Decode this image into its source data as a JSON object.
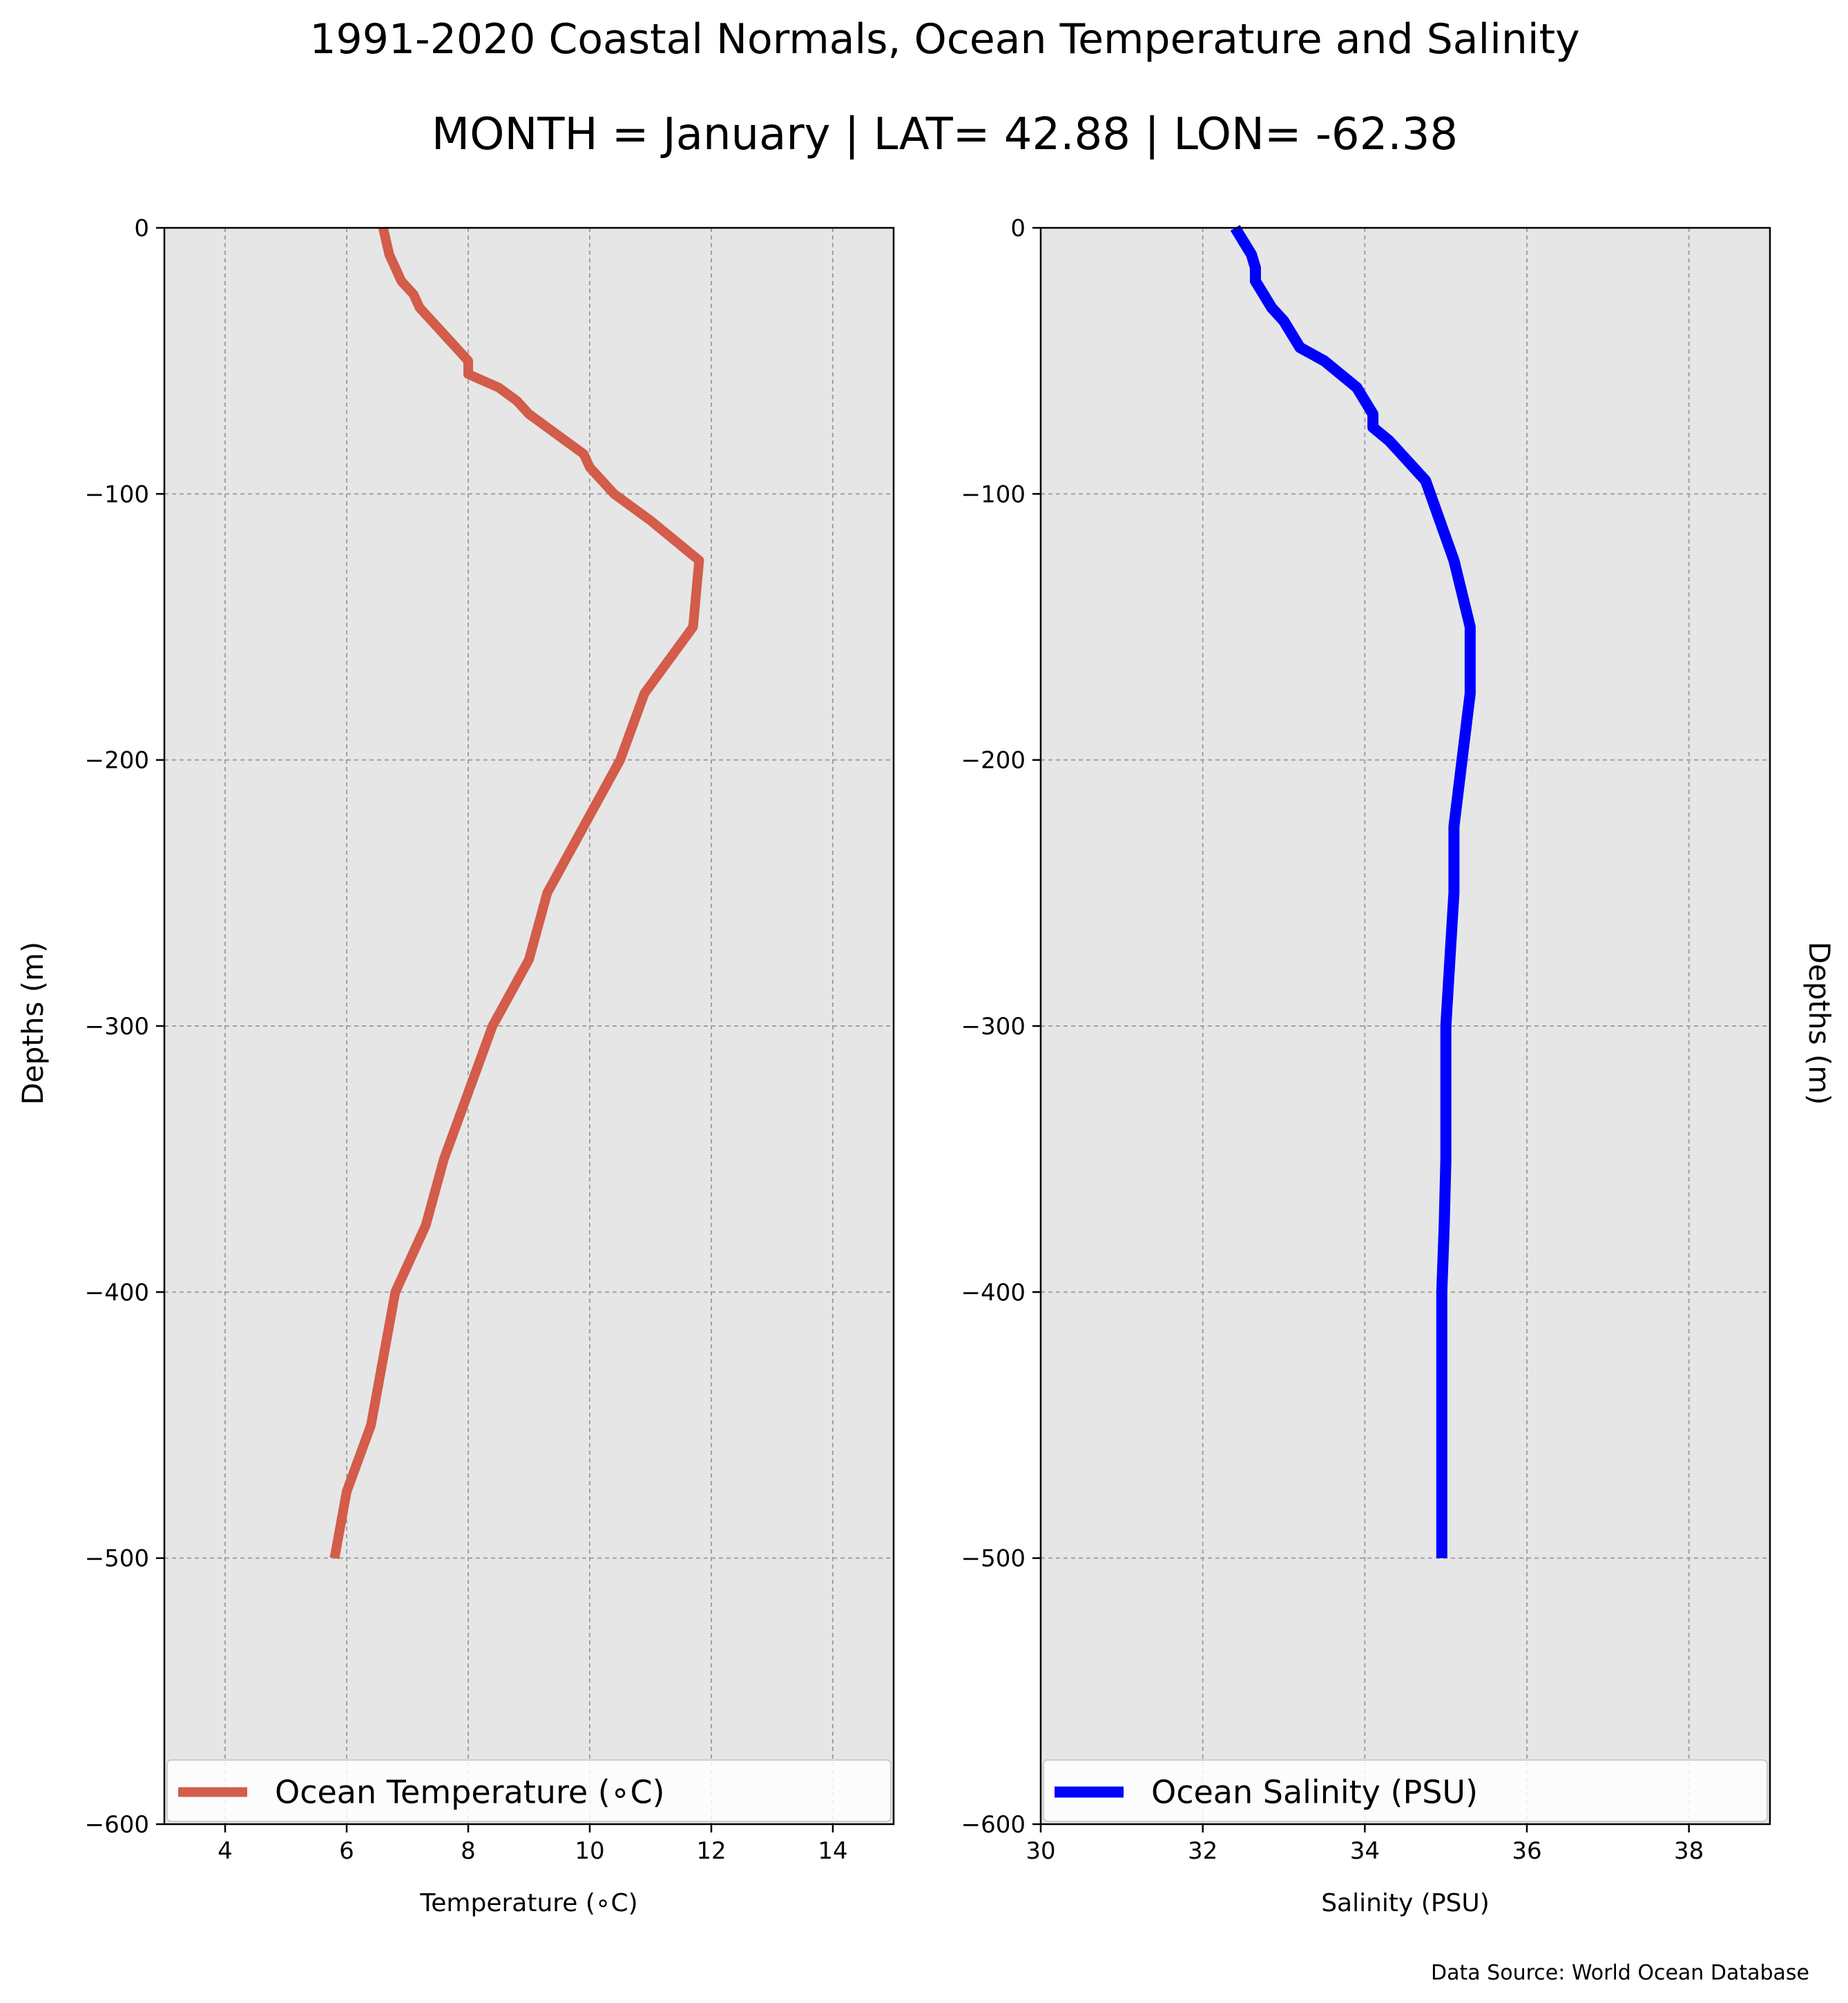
{
  "title": "1991-2020 Coastal Normals, Ocean Temperature and Salinity",
  "subtitle": "MONTH = January | LAT= 42.88 | LON= -62.38",
  "source_note": "Data Source: World Ocean Database",
  "chart_data": [
    {
      "type": "line",
      "xlabel": "Temperature (∘C)",
      "ylabel": "Depths (m)",
      "xlim": [
        3,
        15
      ],
      "ylim": [
        -600,
        0
      ],
      "x_ticks": [
        4,
        6,
        8,
        10,
        12,
        14
      ],
      "y_ticks": [
        0,
        -100,
        -200,
        -300,
        -400,
        -500,
        -600
      ],
      "grid": true,
      "legend_position": "bottom",
      "colors": {
        "line": "#d35c4a",
        "plot_bg": "#e6e6e6",
        "grid": "#a0a0a0"
      },
      "series": [
        {
          "name": "Ocean Temperature (∘C)",
          "points": [
            [
              6.6,
              0
            ],
            [
              6.65,
              -5
            ],
            [
              6.7,
              -10
            ],
            [
              6.8,
              -15
            ],
            [
              6.9,
              -20
            ],
            [
              7.1,
              -25
            ],
            [
              7.2,
              -30
            ],
            [
              7.4,
              -35
            ],
            [
              7.6,
              -40
            ],
            [
              7.8,
              -45
            ],
            [
              8.0,
              -50
            ],
            [
              8.0,
              -55
            ],
            [
              8.5,
              -60
            ],
            [
              8.8,
              -65
            ],
            [
              9.0,
              -70
            ],
            [
              9.3,
              -75
            ],
            [
              9.6,
              -80
            ],
            [
              9.9,
              -85
            ],
            [
              10.0,
              -90
            ],
            [
              10.2,
              -95
            ],
            [
              10.4,
              -100
            ],
            [
              11.0,
              -110
            ],
            [
              11.8,
              -125
            ],
            [
              11.7,
              -150
            ],
            [
              10.9,
              -175
            ],
            [
              10.5,
              -200
            ],
            [
              9.9,
              -225
            ],
            [
              9.3,
              -250
            ],
            [
              9.0,
              -275
            ],
            [
              8.4,
              -300
            ],
            [
              7.6,
              -350
            ],
            [
              7.3,
              -375
            ],
            [
              6.8,
              -400
            ],
            [
              6.6,
              -425
            ],
            [
              6.4,
              -450
            ],
            [
              6.0,
              -475
            ],
            [
              5.8,
              -500
            ]
          ]
        }
      ]
    },
    {
      "type": "line",
      "xlabel": "Salinity (PSU)",
      "ylabel": "Depths (m)",
      "xlim": [
        30,
        39
      ],
      "ylim": [
        -600,
        0
      ],
      "x_ticks": [
        30,
        32,
        34,
        36,
        38
      ],
      "y_ticks": [
        0,
        -100,
        -200,
        -300,
        -400,
        -500,
        -600
      ],
      "grid": true,
      "legend_position": "bottom",
      "colors": {
        "line": "#0000ff",
        "plot_bg": "#e6e6e6",
        "grid": "#a0a0a0"
      },
      "series": [
        {
          "name": "Ocean Salinity (PSU)",
          "points": [
            [
              32.4,
              0
            ],
            [
              32.5,
              -5
            ],
            [
              32.6,
              -10
            ],
            [
              32.65,
              -15
            ],
            [
              32.65,
              -20
            ],
            [
              32.75,
              -25
            ],
            [
              32.85,
              -30
            ],
            [
              33.0,
              -35
            ],
            [
              33.1,
              -40
            ],
            [
              33.2,
              -45
            ],
            [
              33.5,
              -50
            ],
            [
              33.9,
              -60
            ],
            [
              34.1,
              -70
            ],
            [
              34.1,
              -75
            ],
            [
              34.3,
              -80
            ],
            [
              34.45,
              -85
            ],
            [
              34.6,
              -90
            ],
            [
              34.75,
              -95
            ],
            [
              35.1,
              -125
            ],
            [
              35.3,
              -150
            ],
            [
              35.3,
              -175
            ],
            [
              35.2,
              -200
            ],
            [
              35.1,
              -225
            ],
            [
              35.1,
              -250
            ],
            [
              35.05,
              -275
            ],
            [
              35.0,
              -300
            ],
            [
              35.0,
              -350
            ],
            [
              34.98,
              -375
            ],
            [
              34.95,
              -400
            ],
            [
              34.95,
              -450
            ],
            [
              34.95,
              -500
            ]
          ]
        }
      ]
    }
  ]
}
